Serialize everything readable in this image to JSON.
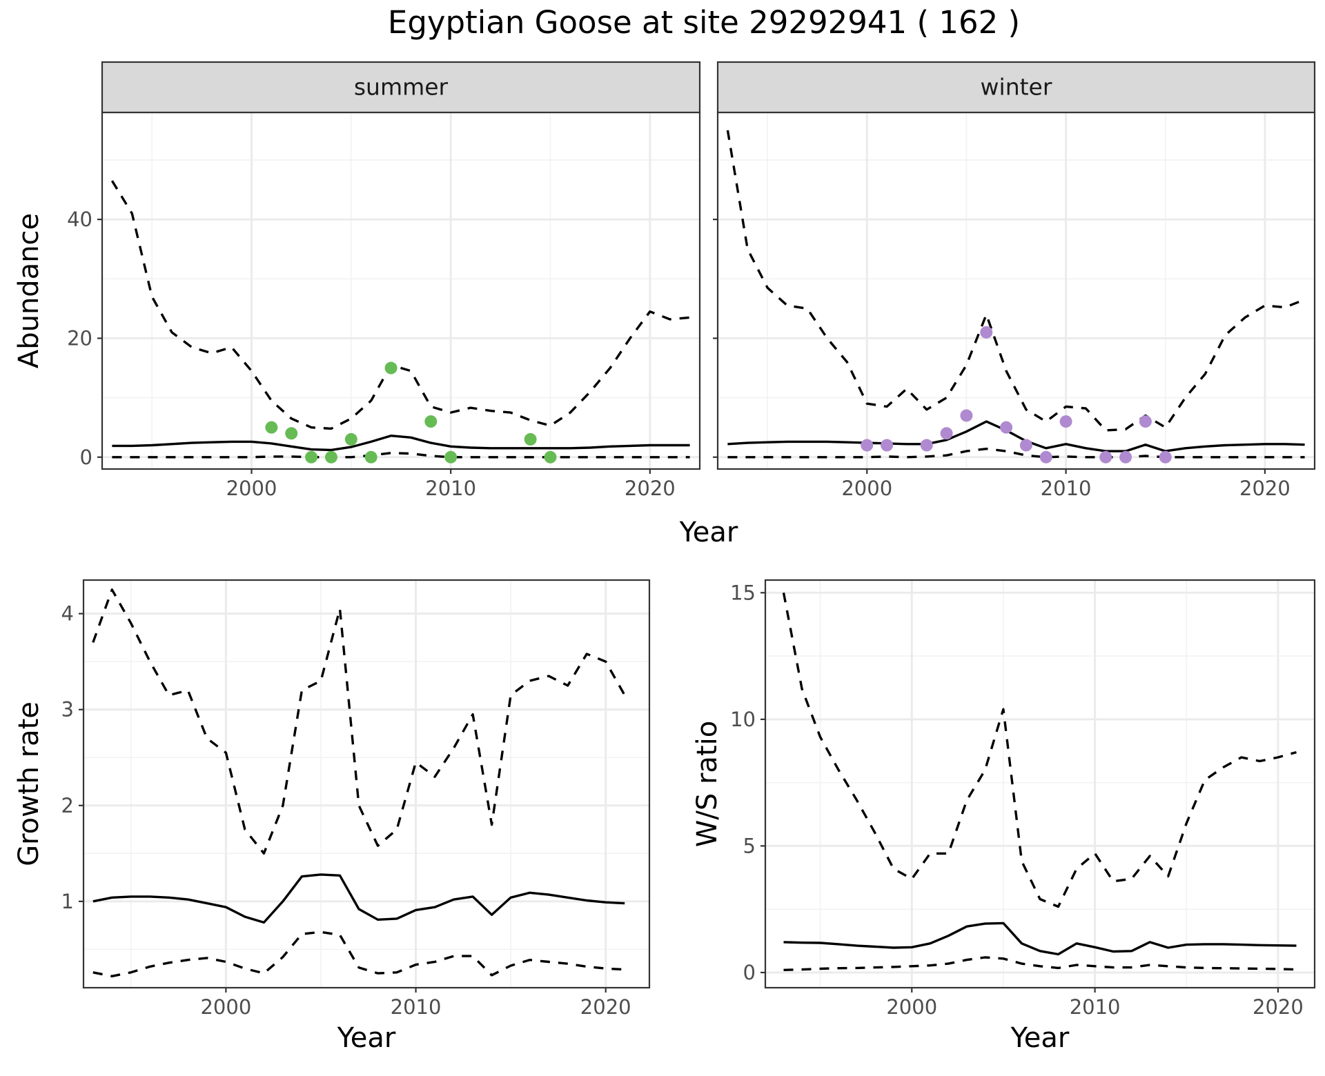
{
  "title": "Egyptian Goose at site 29292941 ( 162 )",
  "colors": {
    "summer_points": "#66bb55",
    "winter_points": "#b08ad0"
  },
  "chart_data": [
    {
      "type": "line",
      "panel": "summer",
      "xlabel": "Year",
      "ylabel": "Abundance",
      "xlim": [
        1992.5,
        2022.5
      ],
      "ylim": [
        -2,
        58
      ],
      "x_ticks": [
        2000,
        2010,
        2020
      ],
      "y_ticks": [
        0,
        20,
        40
      ],
      "grid": true,
      "series": [
        {
          "role": "estimate",
          "style": "solid",
          "x": [
            1993,
            1994,
            1995,
            1996,
            1997,
            1998,
            1999,
            2000,
            2001,
            2002,
            2003,
            2004,
            2005,
            2006,
            2007,
            2008,
            2009,
            2010,
            2011,
            2012,
            2013,
            2014,
            2015,
            2016,
            2017,
            2018,
            2019,
            2020,
            2021,
            2022
          ],
          "y": [
            1.9,
            1.9,
            2.0,
            2.2,
            2.4,
            2.5,
            2.6,
            2.6,
            2.3,
            1.8,
            1.3,
            1.2,
            1.7,
            2.6,
            3.6,
            3.3,
            2.4,
            1.8,
            1.6,
            1.5,
            1.5,
            1.5,
            1.5,
            1.5,
            1.6,
            1.8,
            1.9,
            2.0,
            2.0,
            2.0
          ]
        },
        {
          "role": "upper",
          "style": "dashed",
          "x": [
            1993,
            1994,
            1995,
            1996,
            1997,
            1998,
            1999,
            2000,
            2001,
            2002,
            2003,
            2004,
            2005,
            2006,
            2007,
            2008,
            2009,
            2010,
            2011,
            2012,
            2013,
            2014,
            2015,
            2016,
            2017,
            2018,
            2019,
            2020,
            2021,
            2022
          ],
          "y": [
            46.5,
            41,
            27,
            21,
            18.5,
            17.5,
            18.5,
            14.5,
            9.5,
            6.5,
            5,
            4.8,
            6.5,
            9.5,
            15.5,
            14.5,
            8.5,
            7.5,
            8.3,
            7.8,
            7.5,
            6.2,
            5.3,
            7.5,
            11,
            15,
            20,
            24.5,
            23.2,
            23.5
          ]
        },
        {
          "role": "lower",
          "style": "dashed",
          "x": [
            1993,
            1994,
            1995,
            1996,
            1997,
            1998,
            1999,
            2000,
            2001,
            2002,
            2003,
            2004,
            2005,
            2006,
            2007,
            2008,
            2009,
            2010,
            2011,
            2012,
            2013,
            2014,
            2015,
            2016,
            2017,
            2018,
            2019,
            2020,
            2021,
            2022
          ],
          "y": [
            0,
            0,
            0,
            0,
            0,
            0,
            0,
            0,
            0.1,
            0.1,
            0,
            0,
            0,
            0.3,
            0.7,
            0.6,
            0.2,
            0,
            0,
            0,
            0,
            0,
            0,
            0,
            0,
            0,
            0,
            0,
            0,
            0
          ]
        }
      ],
      "points": {
        "x": [
          2001,
          2002,
          2003,
          2004,
          2005,
          2006,
          2007,
          2009,
          2010,
          2014,
          2015
        ],
        "y": [
          5,
          4,
          0,
          0,
          3,
          0,
          15,
          6,
          0,
          3,
          0
        ]
      }
    },
    {
      "type": "line",
      "panel": "winter",
      "xlabel": "Year",
      "ylabel": "",
      "xlim": [
        1992.5,
        2022.5
      ],
      "ylim": [
        -2,
        58
      ],
      "x_ticks": [
        2000,
        2010,
        2020
      ],
      "y_ticks": [
        0,
        20,
        40
      ],
      "grid": true,
      "series": [
        {
          "role": "estimate",
          "style": "solid",
          "x": [
            1993,
            1994,
            1995,
            1996,
            1997,
            1998,
            1999,
            2000,
            2001,
            2002,
            2003,
            2004,
            2005,
            2006,
            2007,
            2008,
            2009,
            2010,
            2011,
            2012,
            2013,
            2014,
            2015,
            2016,
            2017,
            2018,
            2019,
            2020,
            2021,
            2022
          ],
          "y": [
            2.2,
            2.4,
            2.5,
            2.6,
            2.6,
            2.6,
            2.5,
            2.4,
            2.3,
            2.2,
            2.2,
            2.9,
            4.3,
            6.0,
            4.5,
            2.7,
            1.5,
            2.2,
            1.5,
            1.0,
            1.0,
            2.1,
            1.0,
            1.5,
            1.8,
            2.0,
            2.1,
            2.2,
            2.2,
            2.1
          ]
        },
        {
          "role": "upper",
          "style": "dashed",
          "x": [
            1993,
            1994,
            1995,
            1996,
            1997,
            1998,
            1999,
            2000,
            2001,
            2002,
            2003,
            2004,
            2005,
            2006,
            2007,
            2008,
            2009,
            2010,
            2011,
            2012,
            2013,
            2014,
            2015,
            2016,
            2017,
            2018,
            2019,
            2020,
            2021,
            2022
          ],
          "y": [
            55,
            35,
            28.5,
            25.5,
            25,
            20,
            16,
            9,
            8.5,
            11.5,
            8,
            10,
            15.5,
            24,
            14.5,
            8,
            6,
            8.5,
            8.2,
            4.5,
            4.7,
            7,
            5,
            10,
            14,
            20.5,
            23.5,
            25.5,
            25.2,
            26.5
          ]
        },
        {
          "role": "lower",
          "style": "dashed",
          "x": [
            1993,
            1994,
            1995,
            1996,
            1997,
            1998,
            1999,
            2000,
            2001,
            2002,
            2003,
            2004,
            2005,
            2006,
            2007,
            2008,
            2009,
            2010,
            2011,
            2012,
            2013,
            2014,
            2015,
            2016,
            2017,
            2018,
            2019,
            2020,
            2021,
            2022
          ],
          "y": [
            0,
            0,
            0,
            0,
            0,
            0,
            0,
            0,
            0.1,
            0,
            0.1,
            0.3,
            1.0,
            1.4,
            1.0,
            0.3,
            0,
            0.1,
            0,
            0,
            0,
            0.2,
            0,
            0,
            0,
            0,
            0,
            0,
            0,
            0
          ]
        }
      ],
      "points": {
        "x": [
          2000,
          2001,
          2003,
          2004,
          2005,
          2006,
          2007,
          2008,
          2009,
          2010,
          2012,
          2013,
          2014,
          2015
        ],
        "y": [
          2,
          2,
          2,
          4,
          7,
          21,
          5,
          2,
          0,
          6,
          0,
          0,
          6,
          0
        ]
      }
    },
    {
      "type": "line",
      "panel": "growth",
      "xlabel": "Year",
      "ylabel": "Growth rate",
      "xlim": [
        1992.5,
        2022.3
      ],
      "ylim": [
        0.1,
        4.35
      ],
      "x_ticks": [
        2000,
        2010,
        2020
      ],
      "y_ticks": [
        1,
        2,
        3,
        4
      ],
      "grid": true,
      "series": [
        {
          "role": "estimate",
          "style": "solid",
          "x": [
            1993,
            1994,
            1995,
            1996,
            1997,
            1998,
            1999,
            2000,
            2001,
            2002,
            2003,
            2004,
            2005,
            2006,
            2007,
            2008,
            2009,
            2010,
            2011,
            2012,
            2013,
            2014,
            2015,
            2016,
            2017,
            2018,
            2019,
            2020,
            2021
          ],
          "y": [
            1.0,
            1.04,
            1.05,
            1.05,
            1.04,
            1.02,
            0.98,
            0.94,
            0.84,
            0.78,
            1.0,
            1.26,
            1.28,
            1.27,
            0.92,
            0.81,
            0.82,
            0.91,
            0.94,
            1.02,
            1.05,
            0.86,
            1.04,
            1.09,
            1.07,
            1.04,
            1.01,
            0.99,
            0.98
          ]
        },
        {
          "role": "upper",
          "style": "dashed",
          "x": [
            1993,
            1994,
            1995,
            1996,
            1997,
            1998,
            1999,
            2000,
            2001,
            2002,
            2003,
            2004,
            2005,
            2006,
            2007,
            2008,
            2009,
            2010,
            2011,
            2012,
            2013,
            2014,
            2015,
            2016,
            2017,
            2018,
            2019,
            2020,
            2021
          ],
          "y": [
            3.7,
            4.25,
            3.9,
            3.5,
            3.15,
            3.2,
            2.7,
            2.55,
            1.75,
            1.5,
            2.0,
            3.2,
            3.3,
            4.05,
            2.0,
            1.58,
            1.75,
            2.45,
            2.3,
            2.6,
            2.95,
            1.8,
            3.15,
            3.3,
            3.35,
            3.25,
            3.58,
            3.5,
            3.15
          ]
        },
        {
          "role": "lower",
          "style": "dashed",
          "x": [
            1993,
            1994,
            1995,
            1996,
            1997,
            1998,
            1999,
            2000,
            2001,
            2002,
            2003,
            2004,
            2005,
            2006,
            2007,
            2008,
            2009,
            2010,
            2011,
            2012,
            2013,
            2014,
            2015,
            2016,
            2017,
            2018,
            2019,
            2020,
            2021
          ],
          "y": [
            0.26,
            0.22,
            0.26,
            0.32,
            0.36,
            0.39,
            0.41,
            0.37,
            0.3,
            0.25,
            0.42,
            0.66,
            0.68,
            0.65,
            0.31,
            0.25,
            0.26,
            0.34,
            0.37,
            0.43,
            0.43,
            0.23,
            0.33,
            0.39,
            0.37,
            0.35,
            0.32,
            0.3,
            0.29
          ]
        }
      ]
    },
    {
      "type": "line",
      "panel": "ratio",
      "xlabel": "Year",
      "ylabel": "W/S ratio",
      "xlim": [
        1992.0,
        2022.0
      ],
      "ylim": [
        -0.6,
        15.5
      ],
      "x_ticks": [
        2000,
        2010,
        2020
      ],
      "y_ticks": [
        0,
        5,
        10,
        15
      ],
      "grid": true,
      "series": [
        {
          "role": "estimate",
          "style": "solid",
          "x": [
            1993,
            1994,
            1995,
            1996,
            1997,
            1998,
            1999,
            2000,
            2001,
            2002,
            2003,
            2004,
            2005,
            2006,
            2007,
            2008,
            2009,
            2010,
            2011,
            2012,
            2013,
            2014,
            2015,
            2016,
            2017,
            2018,
            2019,
            2020,
            2021
          ],
          "y": [
            1.2,
            1.18,
            1.17,
            1.12,
            1.06,
            1.02,
            0.98,
            1.0,
            1.15,
            1.45,
            1.82,
            1.93,
            1.95,
            1.15,
            0.85,
            0.72,
            1.15,
            1.0,
            0.83,
            0.85,
            1.2,
            0.98,
            1.1,
            1.12,
            1.12,
            1.1,
            1.08,
            1.07,
            1.06
          ]
        },
        {
          "role": "upper",
          "style": "dashed",
          "x": [
            1993,
            1994,
            1995,
            1996,
            1997,
            1998,
            1999,
            2000,
            2001,
            2002,
            2003,
            2004,
            2005,
            2006,
            2007,
            2008,
            2009,
            2010,
            2011,
            2012,
            2013,
            2014,
            2015,
            2016,
            2017,
            2018,
            2019,
            2020,
            2021
          ],
          "y": [
            15,
            11.2,
            9.3,
            8.0,
            6.8,
            5.5,
            4.1,
            3.7,
            4.7,
            4.7,
            6.8,
            8.0,
            10.4,
            4.4,
            2.9,
            2.6,
            4.1,
            4.7,
            3.6,
            3.7,
            4.6,
            3.8,
            5.9,
            7.6,
            8.1,
            8.5,
            8.35,
            8.5,
            8.7
          ]
        },
        {
          "role": "lower",
          "style": "dashed",
          "x": [
            1993,
            1994,
            1995,
            1996,
            1997,
            1998,
            1999,
            2000,
            2001,
            2002,
            2003,
            2004,
            2005,
            2006,
            2007,
            2008,
            2009,
            2010,
            2011,
            2012,
            2013,
            2014,
            2015,
            2016,
            2017,
            2018,
            2019,
            2020,
            2021
          ],
          "y": [
            0.1,
            0.12,
            0.15,
            0.17,
            0.18,
            0.2,
            0.22,
            0.25,
            0.28,
            0.35,
            0.5,
            0.6,
            0.55,
            0.35,
            0.25,
            0.18,
            0.3,
            0.25,
            0.2,
            0.2,
            0.3,
            0.25,
            0.2,
            0.18,
            0.17,
            0.16,
            0.15,
            0.14,
            0.12
          ]
        }
      ]
    }
  ]
}
